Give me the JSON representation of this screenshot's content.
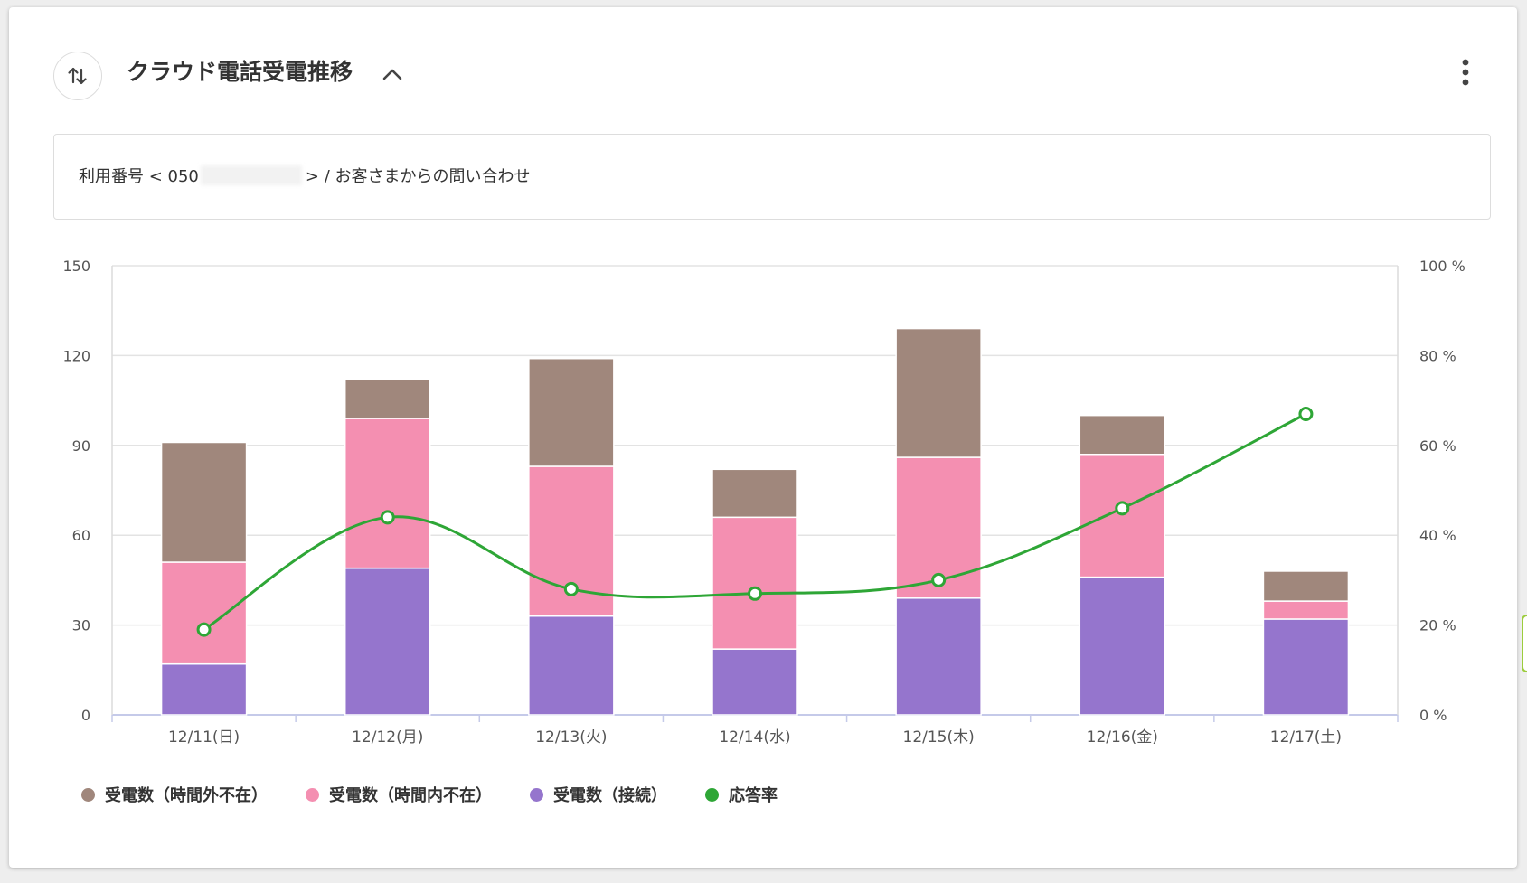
{
  "header": {
    "title": "クラウド電話受電推移"
  },
  "icons": {
    "toggle": "swap-vertical-icon",
    "collapse": "chevron-up-icon",
    "menu": "more-vertical-icon"
  },
  "filter": {
    "prefix": "利用番号 < 050",
    "suffix": "> / お客さまからの問い合わせ"
  },
  "colors": {
    "outside_hours": "#a0877c",
    "in_hours": "#f48fb1",
    "connected": "#9575cd",
    "answer_rate": "#2ea636"
  },
  "chart_data": {
    "type": "bar",
    "stacked": true,
    "categories": [
      "12/11(日)",
      "12/12(月)",
      "12/13(火)",
      "12/14(水)",
      "12/15(木)",
      "12/16(金)",
      "12/17(土)"
    ],
    "series": [
      {
        "name": "受電数（接続）",
        "axis": "left",
        "color": "#9575cd",
        "values": [
          17,
          49,
          33,
          22,
          39,
          46,
          32
        ]
      },
      {
        "name": "受電数（時間内不在）",
        "axis": "left",
        "color": "#f48fb1",
        "values": [
          34,
          50,
          50,
          44,
          47,
          41,
          6
        ]
      },
      {
        "name": "受電数（時間外不在）",
        "axis": "left",
        "color": "#a0877c",
        "values": [
          40,
          13,
          36,
          16,
          43,
          13,
          10
        ]
      },
      {
        "name": "応答率",
        "type": "line",
        "axis": "right",
        "color": "#2ea636",
        "values": [
          19,
          44,
          28,
          27,
          30,
          46,
          67
        ]
      }
    ],
    "left_axis": {
      "min": 0,
      "max": 150,
      "ticks": [
        "0",
        "30",
        "60",
        "90",
        "120",
        "150"
      ]
    },
    "right_axis": {
      "min": 0,
      "max": 100,
      "ticks": [
        "0 %",
        "20 %",
        "40 %",
        "60 %",
        "80 %",
        "100 %"
      ]
    },
    "grid": true,
    "legend_position": "bottom-left",
    "legend": [
      "受電数（時間外不在）",
      "受電数（時間内不在）",
      "受電数（接続）",
      "応答率"
    ]
  }
}
